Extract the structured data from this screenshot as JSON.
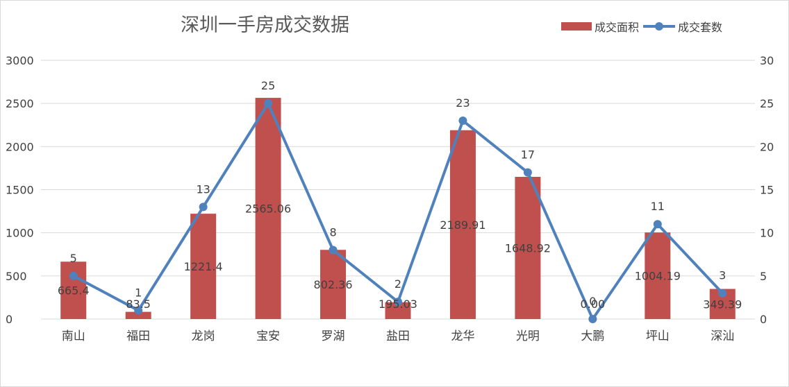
{
  "chart_data": {
    "type": "bar",
    "title": "深圳一手房成交数据",
    "categories": [
      "南山",
      "福田",
      "龙岗",
      "宝安",
      "罗湖",
      "盐田",
      "龙华",
      "光明",
      "大鹏",
      "坪山",
      "深汕"
    ],
    "series": [
      {
        "name": "成交面积",
        "type": "bar",
        "axis": "left",
        "values": [
          665.4,
          83.5,
          1221.4,
          2565.06,
          802.36,
          195.03,
          2189.91,
          1648.92,
          0.0,
          1004.19,
          349.39
        ],
        "labels": [
          "665.4",
          "83.5",
          "1221.4",
          "2565.06",
          "802.36",
          "195.03",
          "2189.91",
          "1648.92",
          "0.00",
          "1004.19",
          "349.39"
        ]
      },
      {
        "name": "成交套数",
        "type": "line",
        "axis": "right",
        "values": [
          5,
          1,
          13,
          25,
          8,
          2,
          23,
          17,
          0,
          11,
          3
        ],
        "labels": [
          "5",
          "1",
          "13",
          "25",
          "8",
          "2",
          "23",
          "17",
          "0",
          "11",
          "3"
        ]
      }
    ],
    "y_left": {
      "min": 0,
      "max": 3000,
      "ticks": [
        "0",
        "500",
        "1000",
        "1500",
        "2000",
        "2500",
        "3000"
      ]
    },
    "y_right": {
      "min": 0,
      "max": 30,
      "ticks": [
        "0",
        "5",
        "10",
        "15",
        "20",
        "25",
        "30"
      ]
    },
    "grid": true,
    "legend_position": "top-right",
    "colors": {
      "bar": "#c0504d",
      "line": "#4f81bd",
      "grid": "#d9d9d9",
      "text": "#404040",
      "title": "#595959"
    }
  }
}
